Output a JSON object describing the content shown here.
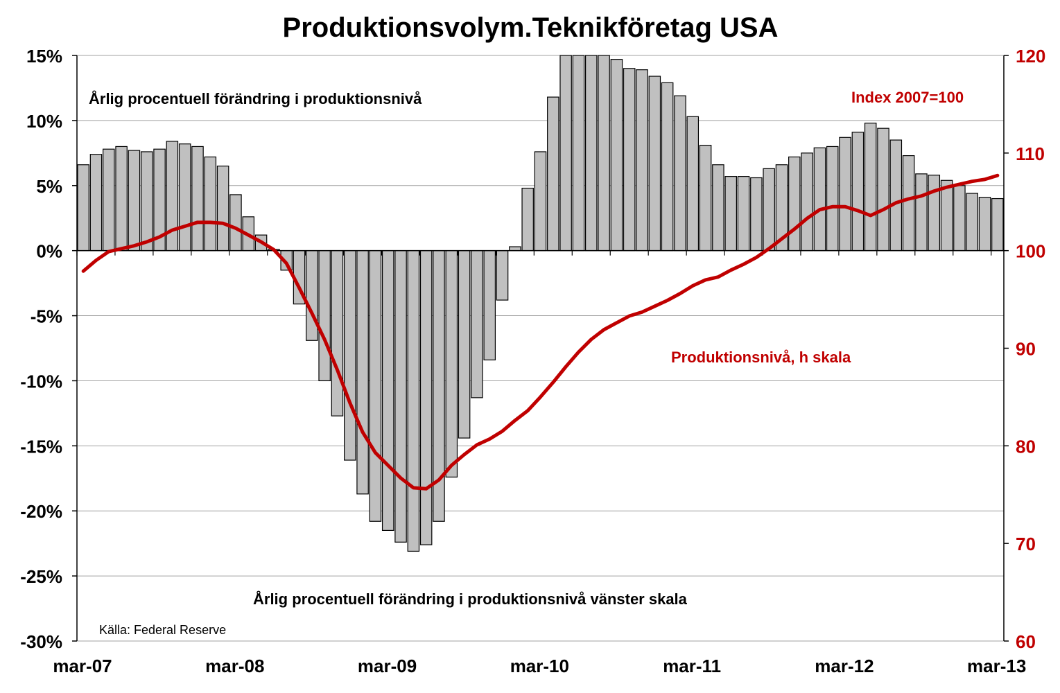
{
  "chart_data": {
    "type": "bar+line",
    "title": "Produktionsvolym.Teknikföretag USA",
    "colors": {
      "bars": "#c0c0c0",
      "bar_outline": "#000000",
      "line": "#c00000",
      "grid": "#a0a0a0"
    },
    "x_tick_labels": [
      "mar-07",
      "mar-08",
      "mar-09",
      "mar-10",
      "mar-11",
      "mar-12",
      "mar-13"
    ],
    "left_axis": {
      "ylim": [
        -30,
        15
      ],
      "tick_values": [
        15,
        10,
        5,
        0,
        -5,
        -10,
        -15,
        -20,
        -25,
        -30
      ],
      "tick_labels": [
        "15%",
        "10%",
        "5%",
        "0%",
        "-5%",
        "-10%",
        "-15%",
        "-20%",
        "-25%",
        "-30%"
      ]
    },
    "right_axis": {
      "ylim": [
        60,
        120
      ],
      "tick_values": [
        120,
        110,
        100,
        90,
        80,
        70,
        60
      ],
      "tick_labels": [
        "120",
        "110",
        "100",
        "90",
        "80",
        "70",
        "60"
      ]
    },
    "annotations": {
      "bars_top": "Årlig procentuell förändring i produktionsnivå",
      "index_note": "Index  2007=100",
      "line_label": "Produktionsnivå, h skala",
      "bars_bottom": "Årlig procentuell förändring i produktionsnivå vänster skala",
      "source": "Källa: Federal Reserve"
    },
    "series": [
      {
        "axis": "left",
        "kind": "bar",
        "values": [
          6.6,
          7.4,
          7.8,
          8.0,
          7.7,
          7.6,
          7.8,
          8.4,
          8.2,
          8.0,
          7.2,
          6.5,
          4.3,
          2.6,
          1.2,
          0.1,
          -1.5,
          -4.1,
          -6.9,
          -10.0,
          -12.7,
          -16.1,
          -18.7,
          -20.8,
          -21.5,
          -22.4,
          -23.1,
          -22.6,
          -20.8,
          -17.4,
          -14.4,
          -11.3,
          -8.4,
          -3.8,
          0.3,
          4.8,
          7.6,
          11.8,
          15.0,
          16.9,
          16.4,
          15.6,
          14.7,
          14.0,
          13.9,
          13.4,
          12.9,
          11.9,
          10.3,
          8.1,
          6.6,
          5.7,
          5.7,
          5.6,
          6.3,
          6.6,
          7.2,
          7.5,
          7.9,
          8.0,
          8.7,
          9.1,
          9.8,
          9.4,
          8.5,
          7.3,
          5.9,
          5.8,
          5.4,
          5.0,
          4.4,
          4.1,
          4.0
        ]
      },
      {
        "axis": "right",
        "kind": "line",
        "values": [
          97.9,
          99.0,
          99.9,
          100.2,
          100.5,
          100.9,
          101.4,
          102.1,
          102.5,
          102.9,
          102.9,
          102.8,
          102.3,
          101.6,
          100.9,
          100.1,
          98.7,
          96.2,
          93.6,
          90.9,
          87.8,
          84.4,
          81.4,
          79.3,
          78.0,
          76.7,
          75.7,
          75.6,
          76.5,
          78.0,
          79.1,
          80.1,
          80.7,
          81.5,
          82.6,
          83.6,
          85.0,
          86.5,
          88.1,
          89.6,
          90.9,
          91.9,
          92.6,
          93.3,
          93.7,
          94.3,
          94.9,
          95.6,
          96.4,
          97.0,
          97.3,
          98.0,
          98.6,
          99.3,
          100.2,
          101.2,
          102.2,
          103.3,
          104.2,
          104.5,
          104.5,
          104.1,
          103.6,
          104.2,
          104.9,
          105.3,
          105.6,
          106.1,
          106.5,
          106.8,
          107.1,
          107.3,
          107.7
        ]
      }
    ]
  }
}
